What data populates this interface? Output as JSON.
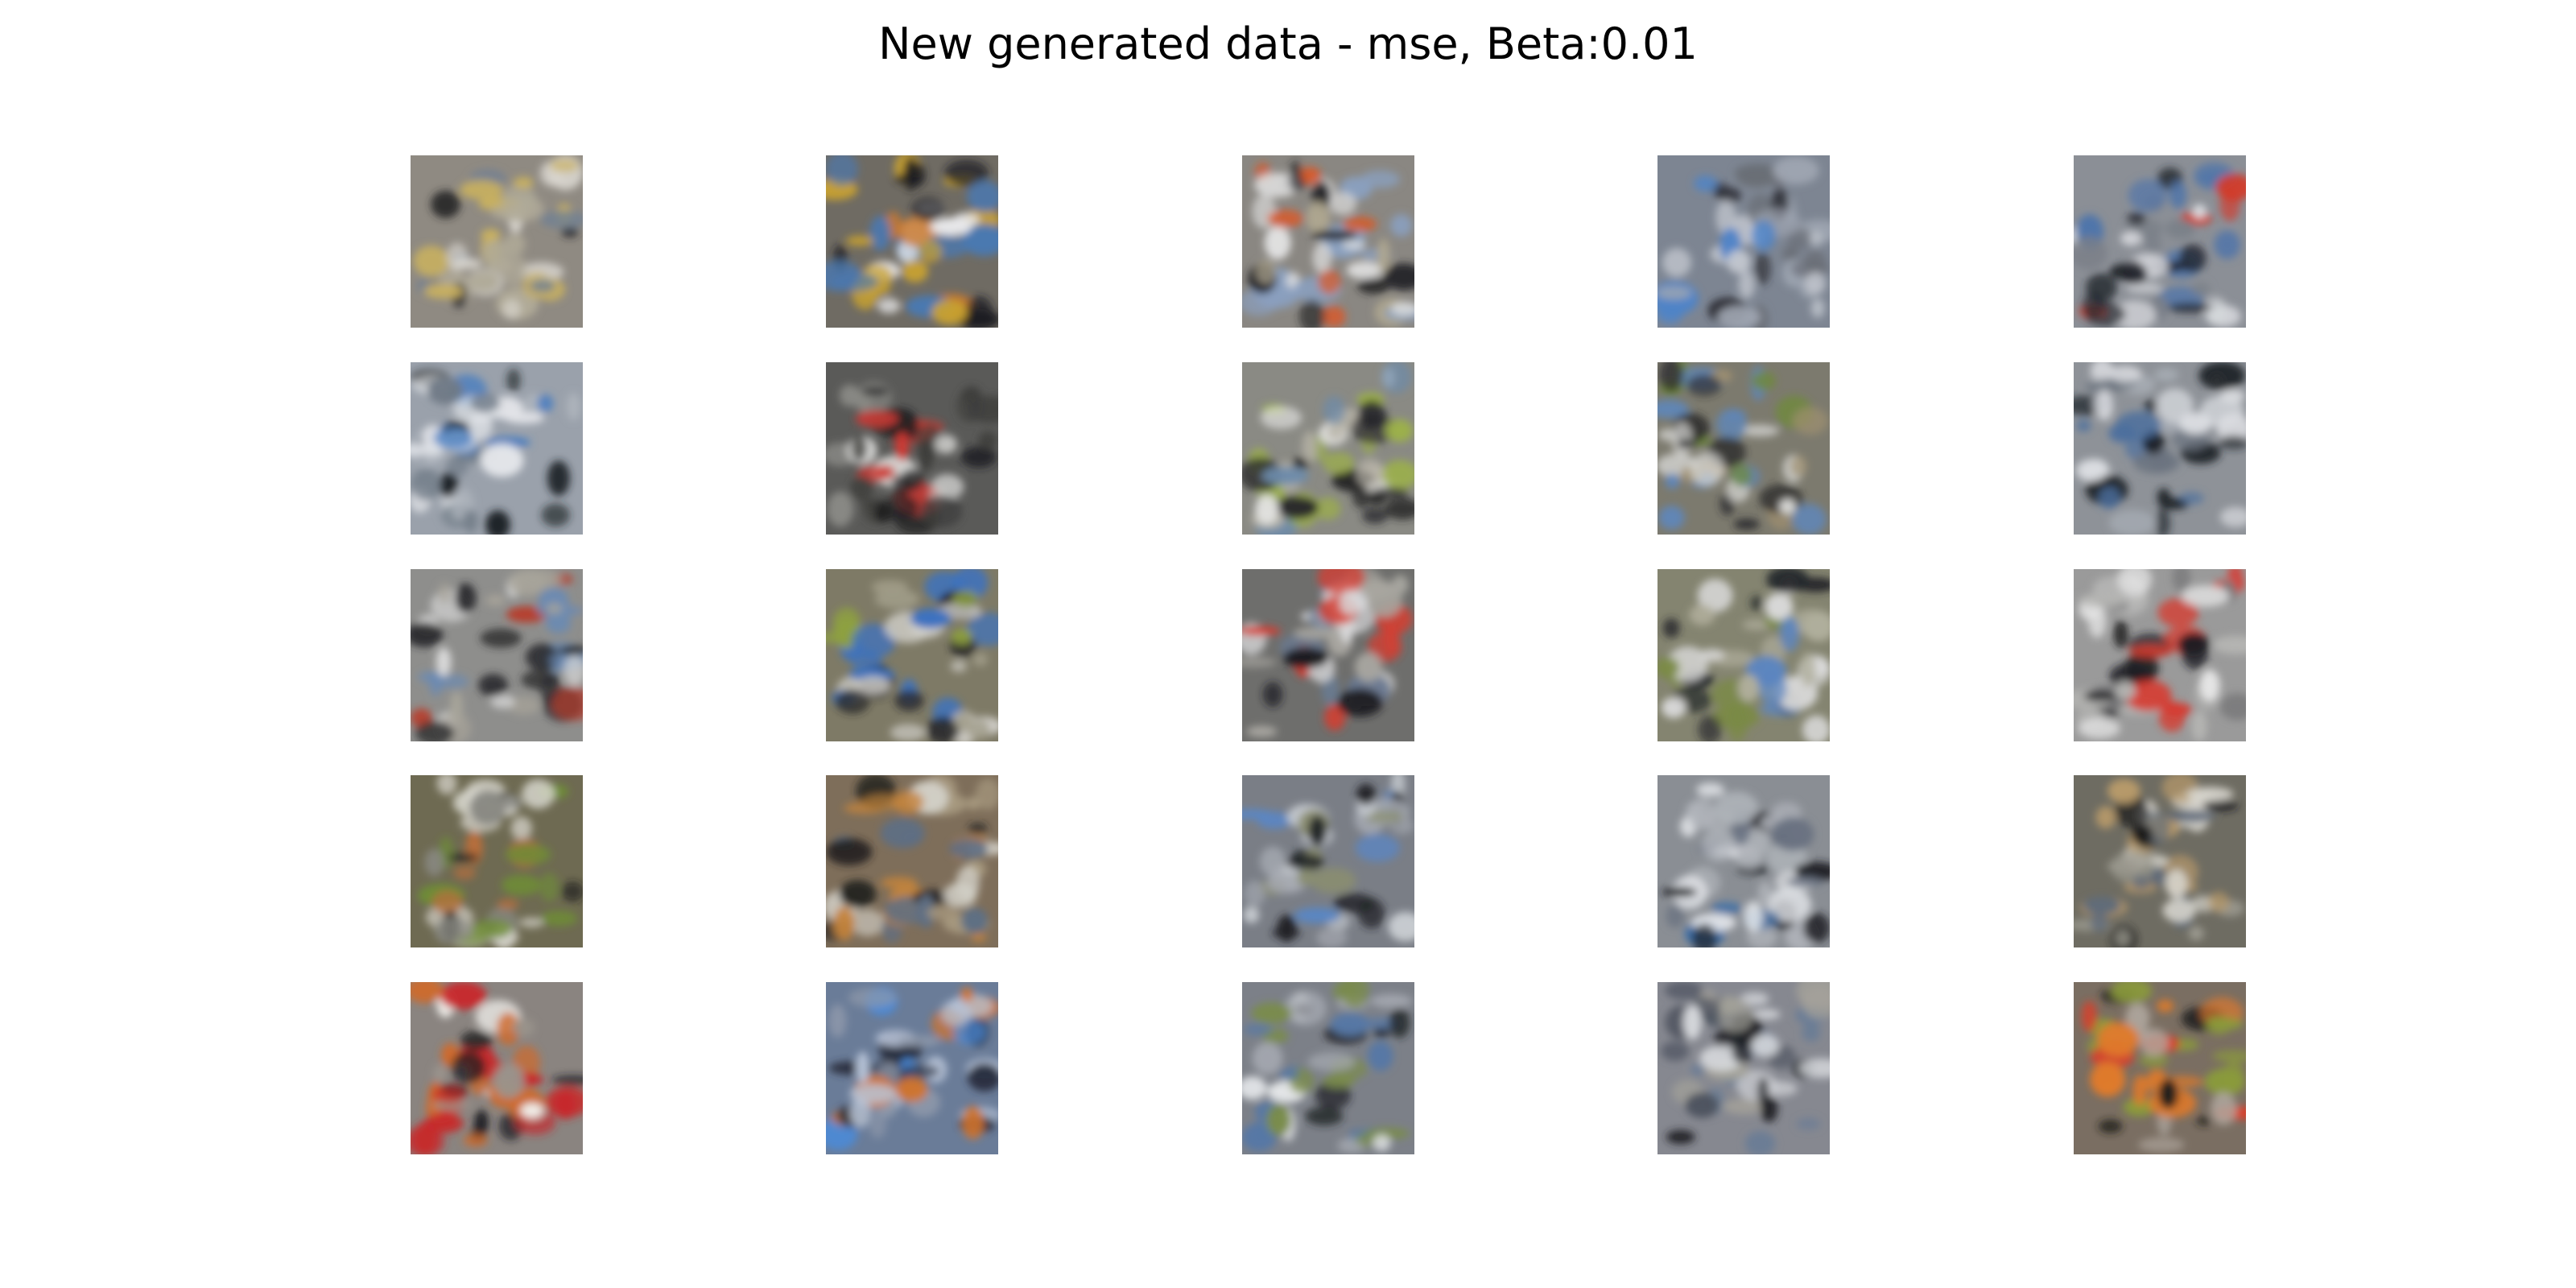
{
  "figure": {
    "title": "New generated data - mse, Beta:0.01",
    "grid_rows": 5,
    "grid_cols": 5
  },
  "samples": [
    {
      "row": 1,
      "col": 1,
      "bg": "#8f8a82",
      "colors": [
        "#d9d6cf",
        "#26262a",
        "#6f7f94",
        "#b0aa98",
        "#c8b060"
      ]
    },
    {
      "row": 1,
      "col": 2,
      "bg": "#6f6b63",
      "colors": [
        "#1e1e22",
        "#e8e8ea",
        "#4a78b0",
        "#c9a230",
        "#cf7a2c"
      ]
    },
    {
      "row": 1,
      "col": 3,
      "bg": "#8a8782",
      "colors": [
        "#e0e0e0",
        "#222226",
        "#e0541e",
        "#8aa0c0",
        "#b0a890"
      ]
    },
    {
      "row": 1,
      "col": 4,
      "bg": "#7d8592",
      "colors": [
        "#4f84c8",
        "#2a2c32",
        "#c4c8d0",
        "#9fa6b2",
        "#6a6e76"
      ]
    },
    {
      "row": 1,
      "col": 5,
      "bg": "#8b8f96",
      "colors": [
        "#d43a28",
        "#20242c",
        "#4e74aa",
        "#d8dade",
        "#7a7f88"
      ]
    },
    {
      "row": 2,
      "col": 1,
      "bg": "#9aa1ab",
      "colors": [
        "#3f79c2",
        "#1f2226",
        "#e4e6ea",
        "#6f7a86",
        "#b2b8c0"
      ]
    },
    {
      "row": 2,
      "col": 2,
      "bg": "#5a5a58",
      "colors": [
        "#202022",
        "#cc3a34",
        "#d6d6d4",
        "#8a8a86",
        "#3e3e3c"
      ]
    },
    {
      "row": 2,
      "col": 3,
      "bg": "#8a8a84",
      "colors": [
        "#e2e2e0",
        "#252528",
        "#9cb04a",
        "#6c8aaa",
        "#b8b4a8"
      ]
    },
    {
      "row": 2,
      "col": 4,
      "bg": "#7c7a6e",
      "colors": [
        "#5f86b8",
        "#2a2a2c",
        "#d8d8d6",
        "#6e8a3a",
        "#a09070"
      ]
    },
    {
      "row": 2,
      "col": 5,
      "bg": "#8e9298",
      "colors": [
        "#4a6e9e",
        "#1e2228",
        "#dcdee2",
        "#6c7480",
        "#aab0b8"
      ]
    },
    {
      "row": 3,
      "col": 1,
      "bg": "#8e8e8c",
      "colors": [
        "#d8d8d8",
        "#2a2a2c",
        "#6a8ab4",
        "#b83a2a",
        "#a8a49a"
      ]
    },
    {
      "row": 3,
      "col": 2,
      "bg": "#7e7a66",
      "colors": [
        "#3c72c0",
        "#8ea040",
        "#d4d2cc",
        "#242428",
        "#9e9a86"
      ]
    },
    {
      "row": 3,
      "col": 3,
      "bg": "#6e6e6c",
      "colors": [
        "#d63c30",
        "#1e1e22",
        "#d8d8da",
        "#6a7a92",
        "#a8a6a0"
      ]
    },
    {
      "row": 3,
      "col": 4,
      "bg": "#848470",
      "colors": [
        "#5c86c0",
        "#24262a",
        "#dadada",
        "#7a8a44",
        "#b0ae9c"
      ]
    },
    {
      "row": 3,
      "col": 5,
      "bg": "#9a9a9a",
      "colors": [
        "#d8392e",
        "#1c1c20",
        "#e4e4e4",
        "#7a7a7c",
        "#b4b4b2"
      ]
    },
    {
      "row": 4,
      "col": 1,
      "bg": "#6e6a52",
      "colors": [
        "#1e1e1c",
        "#d8d6ce",
        "#6e8c36",
        "#b86e3c",
        "#8a8a84"
      ]
    },
    {
      "row": 4,
      "col": 2,
      "bg": "#7e6e5a",
      "colors": [
        "#262422",
        "#d2cfc6",
        "#c4843c",
        "#5e6e84",
        "#a89a80"
      ]
    },
    {
      "row": 4,
      "col": 3,
      "bg": "#7a7e86",
      "colors": [
        "#5a86c4",
        "#202226",
        "#c8ccd2",
        "#8a8e70",
        "#a2a6ae"
      ]
    },
    {
      "row": 4,
      "col": 4,
      "bg": "#8a8e94",
      "colors": [
        "#3c6ea8",
        "#1c1e24",
        "#e6e8ec",
        "#6a7282",
        "#b0b4ba"
      ]
    },
    {
      "row": 4,
      "col": 5,
      "bg": "#6e6c62",
      "colors": [
        "#1c1c1e",
        "#d6d4cc",
        "#b89a6a",
        "#5e6a7a",
        "#9a988e"
      ]
    },
    {
      "row": 5,
      "col": 1,
      "bg": "#8a8480",
      "colors": [
        "#c8282a",
        "#1e1e20",
        "#f0eeea",
        "#d06a2a",
        "#9a948c"
      ]
    },
    {
      "row": 5,
      "col": 2,
      "bg": "#6a7c98",
      "colors": [
        "#4a8ad8",
        "#2a3040",
        "#b8c4d8",
        "#d2742c",
        "#8e98aa"
      ]
    },
    {
      "row": 5,
      "col": 3,
      "bg": "#7c8088",
      "colors": [
        "#eceef0",
        "#222428",
        "#5678a6",
        "#7a8c4a",
        "#a6aab2"
      ]
    },
    {
      "row": 5,
      "col": 4,
      "bg": "#868890",
      "colors": [
        "#d6d8dc",
        "#202226",
        "#6a7c96",
        "#a4a29a",
        "#4e5460"
      ]
    },
    {
      "row": 5,
      "col": 5,
      "bg": "#7a6e62",
      "colors": [
        "#d8402a",
        "#1e1e1c",
        "#e07a2a",
        "#8a9a3a",
        "#b0a8a0"
      ]
    }
  ]
}
